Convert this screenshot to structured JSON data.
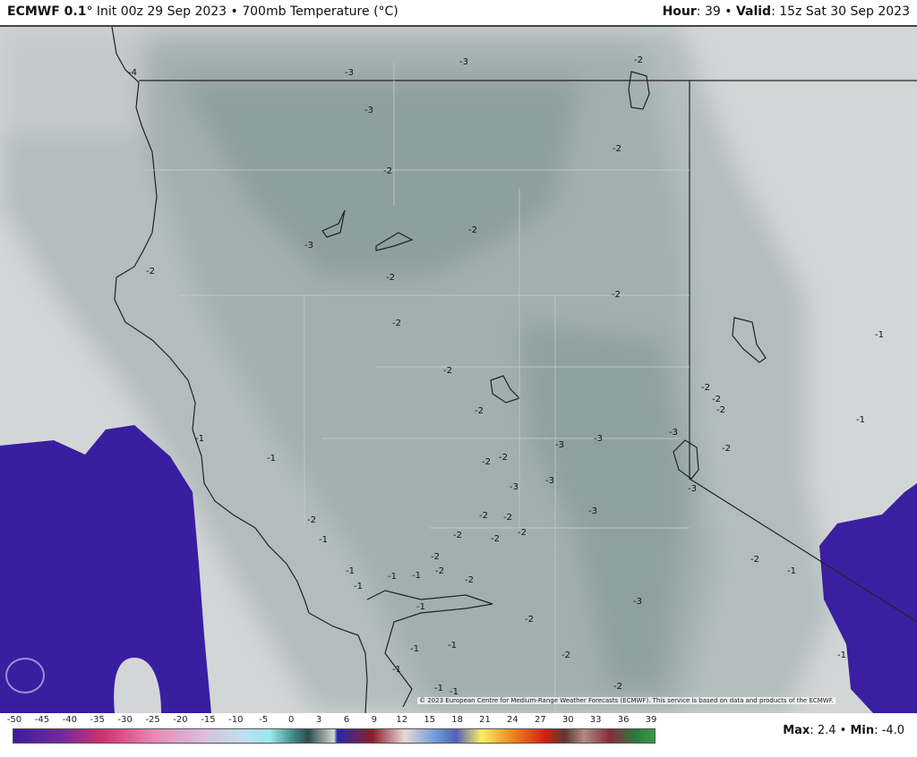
{
  "header": {
    "model": "ECMWF 0.1",
    "degree": "°",
    "init": " Init 00z 29 Sep 2023 • 700mb Temperature (°C)",
    "hour_label": "Hour",
    "hour_value": ": 39 • ",
    "valid_label": "Valid",
    "valid_value": ": 15z Sat 30 Sep 2023"
  },
  "map": {
    "colors": {
      "background": "#d3d6d6",
      "cold_band": "#aab5b6",
      "colder_band": "#8fa0a1",
      "purple_region": "#3a1ea0",
      "borders": "#222222"
    },
    "contour_labels": [
      "-4",
      "-3",
      "-3",
      "-2",
      "-3",
      "-2",
      "-2",
      "-2",
      "-3",
      "-2",
      "-2",
      "-2",
      "-2",
      "-1",
      "-2",
      "-2",
      "-2",
      "-2",
      "-2",
      "-1",
      "-3",
      "-3",
      "-3",
      "-1",
      "-1",
      "-2",
      "-2",
      "-2",
      "-3",
      "-3",
      "-3",
      "-3",
      "-2",
      "-2",
      "-2",
      "-1",
      "-2",
      "-2",
      "-2",
      "-2",
      "-2",
      "-2",
      "-1",
      "-1",
      "-1",
      "-1",
      "-2",
      "-1",
      "-1",
      "-3",
      "-2",
      "-1",
      "-1",
      "-2",
      "-1",
      "-1",
      "-2",
      "-1",
      "-1"
    ],
    "attribution": "© 2023 European Centre for Medium-Range Weather Forecasts (ECMWF). This service is based on data and products of the ECMWF."
  },
  "legend": {
    "ticks": [
      "-50",
      "-45",
      "-40",
      "-35",
      "-30",
      "-25",
      "-20",
      "-15",
      "-10",
      "-5",
      "0",
      "3",
      "6",
      "9",
      "12",
      "15",
      "18",
      "21",
      "24",
      "27",
      "30",
      "33",
      "36",
      "39"
    ],
    "max_label": "Max",
    "max_value": ": 2.4 • ",
    "min_label": "Min",
    "min_value": ": -4.0"
  }
}
